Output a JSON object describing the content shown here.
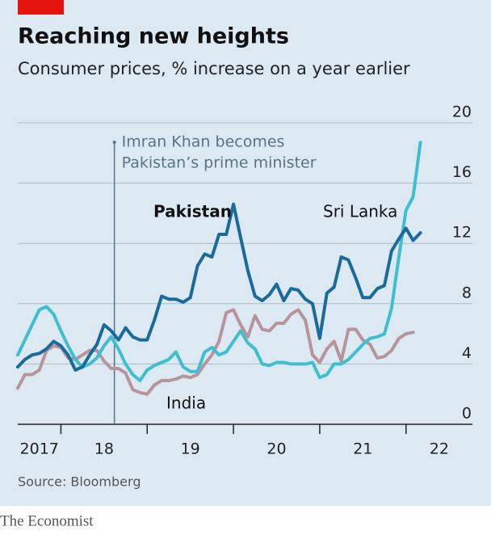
{
  "chart_data": {
    "type": "line",
    "title": "Reaching new heights",
    "subtitle": "Consumer prices, % increase on a year earlier",
    "source": "Source: Bloomberg",
    "brand": "The Economist",
    "x": [
      2017.5,
      2017.583,
      2017.667,
      2017.75,
      2017.833,
      2017.917,
      2018.0,
      2018.083,
      2018.167,
      2018.25,
      2018.333,
      2018.417,
      2018.5,
      2018.583,
      2018.667,
      2018.75,
      2018.833,
      2018.917,
      2019.0,
      2019.083,
      2019.167,
      2019.25,
      2019.333,
      2019.417,
      2019.5,
      2019.583,
      2019.667,
      2019.75,
      2019.833,
      2019.917,
      2020.0,
      2020.083,
      2020.167,
      2020.25,
      2020.333,
      2020.417,
      2020.5,
      2020.583,
      2020.667,
      2020.75,
      2020.833,
      2020.917,
      2021.0,
      2021.083,
      2021.167,
      2021.25,
      2021.333,
      2021.417,
      2021.5,
      2021.583,
      2021.667,
      2021.75,
      2021.833,
      2021.917,
      2022.0,
      2022.083,
      2022.167
    ],
    "series": [
      {
        "name": "Pakistan",
        "color": "#1a6a9a",
        "values": [
          3.8,
          4.3,
          4.6,
          4.7,
          5.0,
          5.5,
          5.2,
          4.6,
          3.6,
          3.8,
          4.6,
          5.3,
          6.6,
          6.2,
          5.6,
          6.4,
          5.8,
          5.6,
          5.6,
          6.9,
          8.5,
          8.3,
          8.3,
          8.1,
          8.4,
          10.5,
          11.3,
          11.1,
          12.6,
          12.6,
          14.6,
          12.4,
          10.2,
          8.5,
          8.2,
          8.6,
          9.3,
          8.2,
          9.0,
          8.9,
          8.3,
          8.0,
          5.7,
          8.7,
          9.1,
          11.1,
          10.9,
          9.7,
          8.4,
          8.4,
          9.0,
          9.2,
          11.5,
          12.3,
          13.0,
          12.2,
          12.7
        ]
      },
      {
        "name": "Sri Lanka",
        "color": "#3ebfd0",
        "values": [
          4.6,
          5.6,
          6.6,
          7.6,
          7.8,
          7.3,
          6.2,
          5.2,
          4.3,
          3.8,
          4.0,
          4.4,
          5.2,
          5.8,
          5.0,
          4.0,
          3.3,
          2.9,
          3.6,
          3.9,
          4.1,
          4.3,
          4.8,
          3.8,
          3.5,
          3.5,
          4.8,
          5.1,
          4.6,
          4.8,
          5.5,
          6.2,
          5.4,
          5.0,
          4.0,
          3.9,
          4.1,
          4.1,
          4.0,
          4.0,
          4.0,
          4.1,
          3.1,
          3.3,
          4.0,
          4.0,
          4.3,
          4.8,
          5.3,
          5.7,
          5.8,
          6.0,
          7.7,
          11.1,
          14.2,
          15.1,
          18.7
        ]
      },
      {
        "name": "India",
        "color": "#b7949a",
        "values": [
          2.4,
          3.3,
          3.3,
          3.6,
          4.9,
          5.2,
          5.1,
          4.4,
          4.3,
          4.6,
          4.9,
          4.9,
          4.2,
          3.7,
          3.7,
          3.4,
          2.3,
          2.1,
          2.0,
          2.6,
          2.9,
          2.9,
          3.0,
          3.2,
          3.1,
          3.3,
          4.0,
          4.6,
          5.5,
          7.4,
          7.6,
          6.6,
          5.8,
          7.2,
          6.3,
          6.2,
          6.7,
          6.7,
          7.3,
          7.6,
          6.9,
          4.6,
          4.1,
          5.0,
          5.5,
          4.2,
          6.3,
          6.3,
          5.6,
          5.3,
          4.4,
          4.5,
          4.9,
          5.7,
          6.0,
          6.1,
          null
        ]
      }
    ],
    "xlim": [
      2017.5,
      2022.77
    ],
    "xticks": [
      {
        "value": 2017,
        "label": "2017"
      },
      {
        "value": 2018,
        "label": "18"
      },
      {
        "value": 2019,
        "label": "19"
      },
      {
        "value": 2020,
        "label": "20"
      },
      {
        "value": 2021,
        "label": "21"
      },
      {
        "value": 2022,
        "label": "22"
      }
    ],
    "ylim": [
      0,
      20
    ],
    "yticks": [
      0,
      4,
      8,
      12,
      16,
      20
    ],
    "grid": true,
    "annotations": [
      {
        "x": 2018.62,
        "text": [
          "Imran Khan becomes",
          "Pakistan’s prime minister"
        ]
      }
    ]
  }
}
